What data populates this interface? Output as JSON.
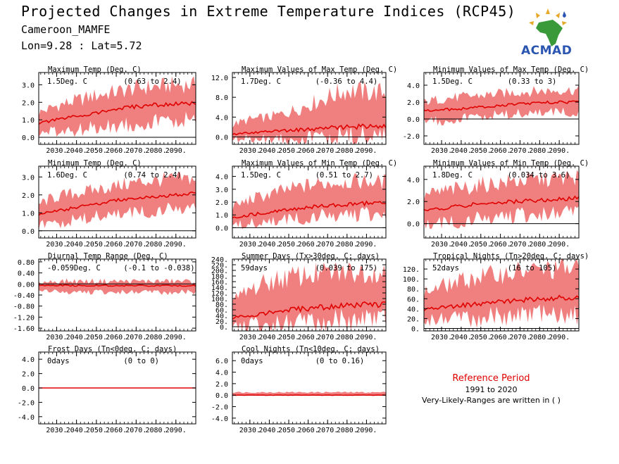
{
  "header": {
    "title": "Projected Changes in Extreme Temperature Indices (RCP45)",
    "location": "Cameroon_MAMFE",
    "coords": "Lon=9.28 : Lat=5.72"
  },
  "logo": {
    "text": "ACMAD"
  },
  "reference": {
    "title": "Reference Period",
    "years": "1991 to 2020",
    "note": "Very-Likely-Ranges are written in ( )"
  },
  "colors": {
    "band": "#f08080",
    "line": "#e00000",
    "zero": "#000000"
  },
  "chart_data": [
    {
      "type": "line",
      "title": "Maximum Temp (Deg. C)",
      "stat": "1.5Deg. C",
      "range": "(0.63 to 2.4)",
      "xlim": [
        2021,
        2100
      ],
      "ylim": [
        -0.4,
        3.7
      ],
      "yticks": [
        0,
        1,
        2,
        3
      ],
      "ytick_labels": [
        "0.0",
        "1.0",
        "2.0",
        "3.0"
      ],
      "xticks": [
        2030,
        2040,
        2050,
        2060,
        2070,
        2080,
        2090
      ],
      "xtick_labels": [
        "2030.",
        "2040.",
        "2050.",
        "2060.",
        "2070.",
        "2080.",
        "2090."
      ],
      "x": [
        2021,
        2030,
        2040,
        2050,
        2060,
        2070,
        2080,
        2090,
        2100
      ],
      "mean": [
        0.8,
        1.0,
        1.2,
        1.4,
        1.6,
        1.75,
        1.85,
        1.9,
        1.95
      ],
      "low": [
        0.2,
        0.3,
        0.4,
        0.55,
        0.7,
        0.8,
        0.9,
        0.95,
        1.0
      ],
      "high": [
        1.4,
        1.8,
        2.1,
        2.4,
        2.6,
        2.8,
        2.9,
        3.0,
        3.0
      ]
    },
    {
      "type": "line",
      "title": "Maximum Values of Max Temp (Deg. C)",
      "stat": "1.7Deg. C",
      "range": "(-0.36 to 4.4)",
      "xlim": [
        2021,
        2100
      ],
      "ylim": [
        -1.5,
        13
      ],
      "yticks": [
        0,
        4,
        8,
        12
      ],
      "ytick_labels": [
        "0.0",
        "4.0",
        "8.0",
        "12.0"
      ],
      "xticks": [
        2030,
        2040,
        2050,
        2060,
        2070,
        2080,
        2090
      ],
      "xtick_labels": [
        "2030.",
        "2040.",
        "2050.",
        "2060.",
        "2070.",
        "2080.",
        "2090."
      ],
      "x": [
        2021,
        2030,
        2040,
        2050,
        2060,
        2070,
        2080,
        2090,
        2100
      ],
      "mean": [
        0.5,
        0.8,
        1.1,
        1.3,
        1.5,
        1.8,
        2.0,
        2.1,
        2.2
      ],
      "low": [
        -0.5,
        -0.4,
        -0.3,
        -0.2,
        -0.1,
        0.0,
        0.1,
        0.2,
        0.2
      ],
      "high": [
        2.5,
        3.5,
        4.0,
        5.0,
        6.5,
        8.0,
        9.5,
        9.0,
        9.0
      ]
    },
    {
      "type": "line",
      "title": "Minimum Values of Max Temp (Deg. C)",
      "stat": "1.5Deg. C",
      "range": "(0.33 to 3)",
      "xlim": [
        2021,
        2100
      ],
      "ylim": [
        -3,
        5.5
      ],
      "yticks": [
        -2,
        0,
        2,
        4
      ],
      "ytick_labels": [
        "-2.0",
        "0.0",
        "2.0",
        "4.0"
      ],
      "xticks": [
        2030,
        2040,
        2050,
        2060,
        2070,
        2080,
        2090
      ],
      "xtick_labels": [
        "2030.",
        "2040.",
        "2050.",
        "2060.",
        "2070.",
        "2080.",
        "2090."
      ],
      "x": [
        2021,
        2030,
        2040,
        2050,
        2060,
        2070,
        2080,
        2090,
        2100
      ],
      "mean": [
        1.0,
        1.1,
        1.2,
        1.4,
        1.6,
        1.8,
        1.9,
        2.0,
        2.0
      ],
      "low": [
        0.0,
        -0.2,
        0.1,
        0.3,
        0.5,
        0.6,
        0.7,
        0.8,
        0.8
      ],
      "high": [
        2.0,
        2.4,
        2.6,
        2.8,
        3.0,
        3.2,
        3.3,
        3.4,
        3.4
      ]
    },
    {
      "type": "line",
      "title": "Minimum Temp (Deg. C)",
      "stat": "1.6Deg. C",
      "range": "(0.74 to 2.4)",
      "xlim": [
        2021,
        2100
      ],
      "ylim": [
        -0.4,
        3.6
      ],
      "yticks": [
        0,
        1,
        2,
        3
      ],
      "ytick_labels": [
        "0.0",
        "1.0",
        "2.0",
        "3.0"
      ],
      "xticks": [
        2030,
        2040,
        2050,
        2060,
        2070,
        2080,
        2090
      ],
      "xtick_labels": [
        "2030.",
        "2040.",
        "2050.",
        "2060.",
        "2070.",
        "2080.",
        "2090."
      ],
      "x": [
        2021,
        2030,
        2040,
        2050,
        2060,
        2070,
        2080,
        2090,
        2100
      ],
      "mean": [
        0.9,
        1.1,
        1.3,
        1.5,
        1.7,
        1.8,
        1.9,
        2.0,
        2.1
      ],
      "low": [
        0.3,
        0.4,
        0.6,
        0.8,
        0.9,
        1.0,
        1.1,
        1.2,
        1.3
      ],
      "high": [
        1.5,
        1.9,
        2.1,
        2.3,
        2.5,
        2.7,
        2.8,
        2.9,
        2.9
      ]
    },
    {
      "type": "line",
      "title": "Maximum Values of Min Temp (Deg. C)",
      "stat": "1.5Deg. C",
      "range": "(0.51 to 2.7)",
      "xlim": [
        2021,
        2100
      ],
      "ylim": [
        -0.8,
        4.8
      ],
      "yticks": [
        0,
        1,
        2,
        3,
        4
      ],
      "ytick_labels": [
        "0.0",
        "1.0",
        "2.0",
        "3.0",
        "4.0"
      ],
      "xticks": [
        2030,
        2040,
        2050,
        2060,
        2070,
        2080,
        2090
      ],
      "xtick_labels": [
        "2030.",
        "2040.",
        "2050.",
        "2060.",
        "2070.",
        "2080.",
        "2090."
      ],
      "x": [
        2021,
        2030,
        2040,
        2050,
        2060,
        2070,
        2080,
        2090,
        2100
      ],
      "mean": [
        0.8,
        1.0,
        1.2,
        1.4,
        1.6,
        1.7,
        1.8,
        1.9,
        2.0
      ],
      "low": [
        0.2,
        0.3,
        0.4,
        0.6,
        0.8,
        0.9,
        1.0,
        1.0,
        1.1
      ],
      "high": [
        1.6,
        2.2,
        2.6,
        3.0,
        3.3,
        3.5,
        3.6,
        3.6,
        3.6
      ]
    },
    {
      "type": "line",
      "title": "Minimum Values of Min Temp (Deg. C)",
      "stat": "1.8Deg. C",
      "range": "(0.034 to 3.6)",
      "xlim": [
        2021,
        2100
      ],
      "ylim": [
        -1.3,
        5.2
      ],
      "yticks": [
        0,
        2,
        4
      ],
      "ytick_labels": [
        "0.0",
        "2.0",
        "4.0"
      ],
      "xticks": [
        2030,
        2040,
        2050,
        2060,
        2070,
        2080,
        2090
      ],
      "xtick_labels": [
        "2030.",
        "2040.",
        "2050.",
        "2060.",
        "2070.",
        "2080.",
        "2090."
      ],
      "x": [
        2021,
        2030,
        2040,
        2050,
        2060,
        2070,
        2080,
        2090,
        2100
      ],
      "mean": [
        1.2,
        1.4,
        1.6,
        1.8,
        1.9,
        2.0,
        2.1,
        2.2,
        2.3
      ],
      "low": [
        -0.2,
        0.0,
        0.2,
        0.4,
        0.6,
        0.7,
        0.8,
        0.9,
        1.0
      ],
      "high": [
        2.5,
        2.9,
        3.2,
        3.5,
        3.7,
        3.9,
        4.0,
        4.1,
        4.2
      ]
    },
    {
      "type": "line",
      "title": "Diurnal Temp Range (Deg. C)",
      "stat": "-0.059Deg. C",
      "range": "(-0.1 to -0.038)",
      "xlim": [
        2021,
        2100
      ],
      "ylim": [
        -1.7,
        0.9
      ],
      "yticks": [
        -1.6,
        -1.2,
        -0.8,
        -0.4,
        0,
        0.4,
        0.8
      ],
      "ytick_labels": [
        "-1.60",
        "-1.20",
        "-0.80",
        "-0.40",
        "0.00",
        "0.40",
        "0.80"
      ],
      "xticks": [
        2030,
        2040,
        2050,
        2060,
        2070,
        2080,
        2090
      ],
      "xtick_labels": [
        "2030.",
        "2040.",
        "2050.",
        "2060.",
        "2070.",
        "2080.",
        "2090."
      ],
      "x": [
        2021,
        2030,
        2040,
        2050,
        2060,
        2070,
        2080,
        2090,
        2100
      ],
      "mean": [
        -0.06,
        -0.05,
        -0.06,
        -0.06,
        -0.06,
        -0.06,
        -0.06,
        -0.06,
        -0.06
      ],
      "low": [
        -0.2,
        -0.3,
        -0.3,
        -0.3,
        -0.3,
        -0.3,
        -0.3,
        -0.3,
        -0.3
      ],
      "high": [
        0.05,
        0.1,
        0.1,
        0.1,
        0.1,
        0.1,
        0.1,
        0.1,
        0.1
      ]
    },
    {
      "type": "line",
      "title": "Summer Days (Tx>30deg. C; days)",
      "stat": "59days",
      "range": "(0.039 to 175)",
      "xlim": [
        2021,
        2100
      ],
      "ylim": [
        -15,
        240
      ],
      "yticks": [
        0,
        20,
        40,
        60,
        80,
        100,
        120,
        140,
        160,
        180,
        200,
        220,
        240
      ],
      "ytick_labels": [
        "0.",
        "20.",
        "40.",
        "60.",
        "80.",
        "100.",
        "120.",
        "140.",
        "160.",
        "180.",
        "200.",
        "220.",
        "240."
      ],
      "xticks": [
        2030,
        2040,
        2050,
        2060,
        2070,
        2080,
        2090
      ],
      "xtick_labels": [
        "2030.",
        "2040.",
        "2050.",
        "2060.",
        "2070.",
        "2080.",
        "2090."
      ],
      "x": [
        2021,
        2030,
        2040,
        2050,
        2060,
        2070,
        2080,
        2090,
        2100
      ],
      "mean": [
        30,
        40,
        50,
        58,
        65,
        70,
        75,
        78,
        80
      ],
      "low": [
        0,
        2,
        5,
        10,
        15,
        20,
        22,
        25,
        25
      ],
      "high": [
        90,
        130,
        160,
        175,
        185,
        190,
        195,
        195,
        195
      ]
    },
    {
      "type": "line",
      "title": "Tropical Nights (Tn>20deg. C; days)",
      "stat": "52days",
      "range": "(16 to 105)",
      "xlim": [
        2021,
        2100
      ],
      "ylim": [
        -5,
        140
      ],
      "yticks": [
        0,
        20,
        40,
        60,
        80,
        100,
        120
      ],
      "ytick_labels": [
        "0.",
        "20.",
        "40.",
        "60.",
        "80.",
        "100.",
        "120."
      ],
      "xticks": [
        2030,
        2040,
        2050,
        2060,
        2070,
        2080,
        2090
      ],
      "xtick_labels": [
        "2030.",
        "2040.",
        "2050.",
        "2060.",
        "2070.",
        "2080.",
        "2090."
      ],
      "x": [
        2021,
        2030,
        2040,
        2050,
        2060,
        2070,
        2080,
        2090,
        2100
      ],
      "mean": [
        38,
        42,
        46,
        50,
        54,
        57,
        59,
        61,
        62
      ],
      "low": [
        15,
        18,
        20,
        22,
        24,
        25,
        26,
        27,
        28
      ],
      "high": [
        72,
        85,
        95,
        105,
        110,
        115,
        118,
        120,
        120
      ]
    },
    {
      "type": "line",
      "title": "Frost Days (Tn<0deg. C; days)",
      "stat": "0days",
      "range": "(0 to 0)",
      "xlim": [
        2021,
        2100
      ],
      "ylim": [
        -5,
        5
      ],
      "yticks": [
        -4,
        -2,
        0,
        2,
        4
      ],
      "ytick_labels": [
        "-4.0",
        "-2.0",
        "0.0",
        "2.0",
        "4.0"
      ],
      "xticks": [
        2030,
        2040,
        2050,
        2060,
        2070,
        2080,
        2090
      ],
      "xtick_labels": [
        "2030.",
        "2040.",
        "2050.",
        "2060.",
        "2070.",
        "2080.",
        "2090."
      ],
      "x": [
        2021,
        2100
      ],
      "mean": [
        0,
        0
      ],
      "low": [
        0,
        0
      ],
      "high": [
        0,
        0
      ]
    },
    {
      "type": "line",
      "title": "Cool Nights (Tn<10deg. C; days)",
      "stat": "0days",
      "range": "(0 to 0.16)",
      "xlim": [
        2021,
        2100
      ],
      "ylim": [
        -5,
        7.5
      ],
      "yticks": [
        -4,
        -2,
        0,
        2,
        4,
        6
      ],
      "ytick_labels": [
        "-4.0",
        "-2.0",
        "0.0",
        "2.0",
        "4.0",
        "6.0"
      ],
      "xticks": [
        2030,
        2040,
        2050,
        2060,
        2070,
        2080,
        2090
      ],
      "xtick_labels": [
        "2030.",
        "2040.",
        "2050.",
        "2060.",
        "2070.",
        "2080.",
        "2090."
      ],
      "x": [
        2021,
        2100
      ],
      "mean": [
        0,
        0
      ],
      "low": [
        0,
        0
      ],
      "high": [
        0.5,
        0.5
      ]
    }
  ]
}
